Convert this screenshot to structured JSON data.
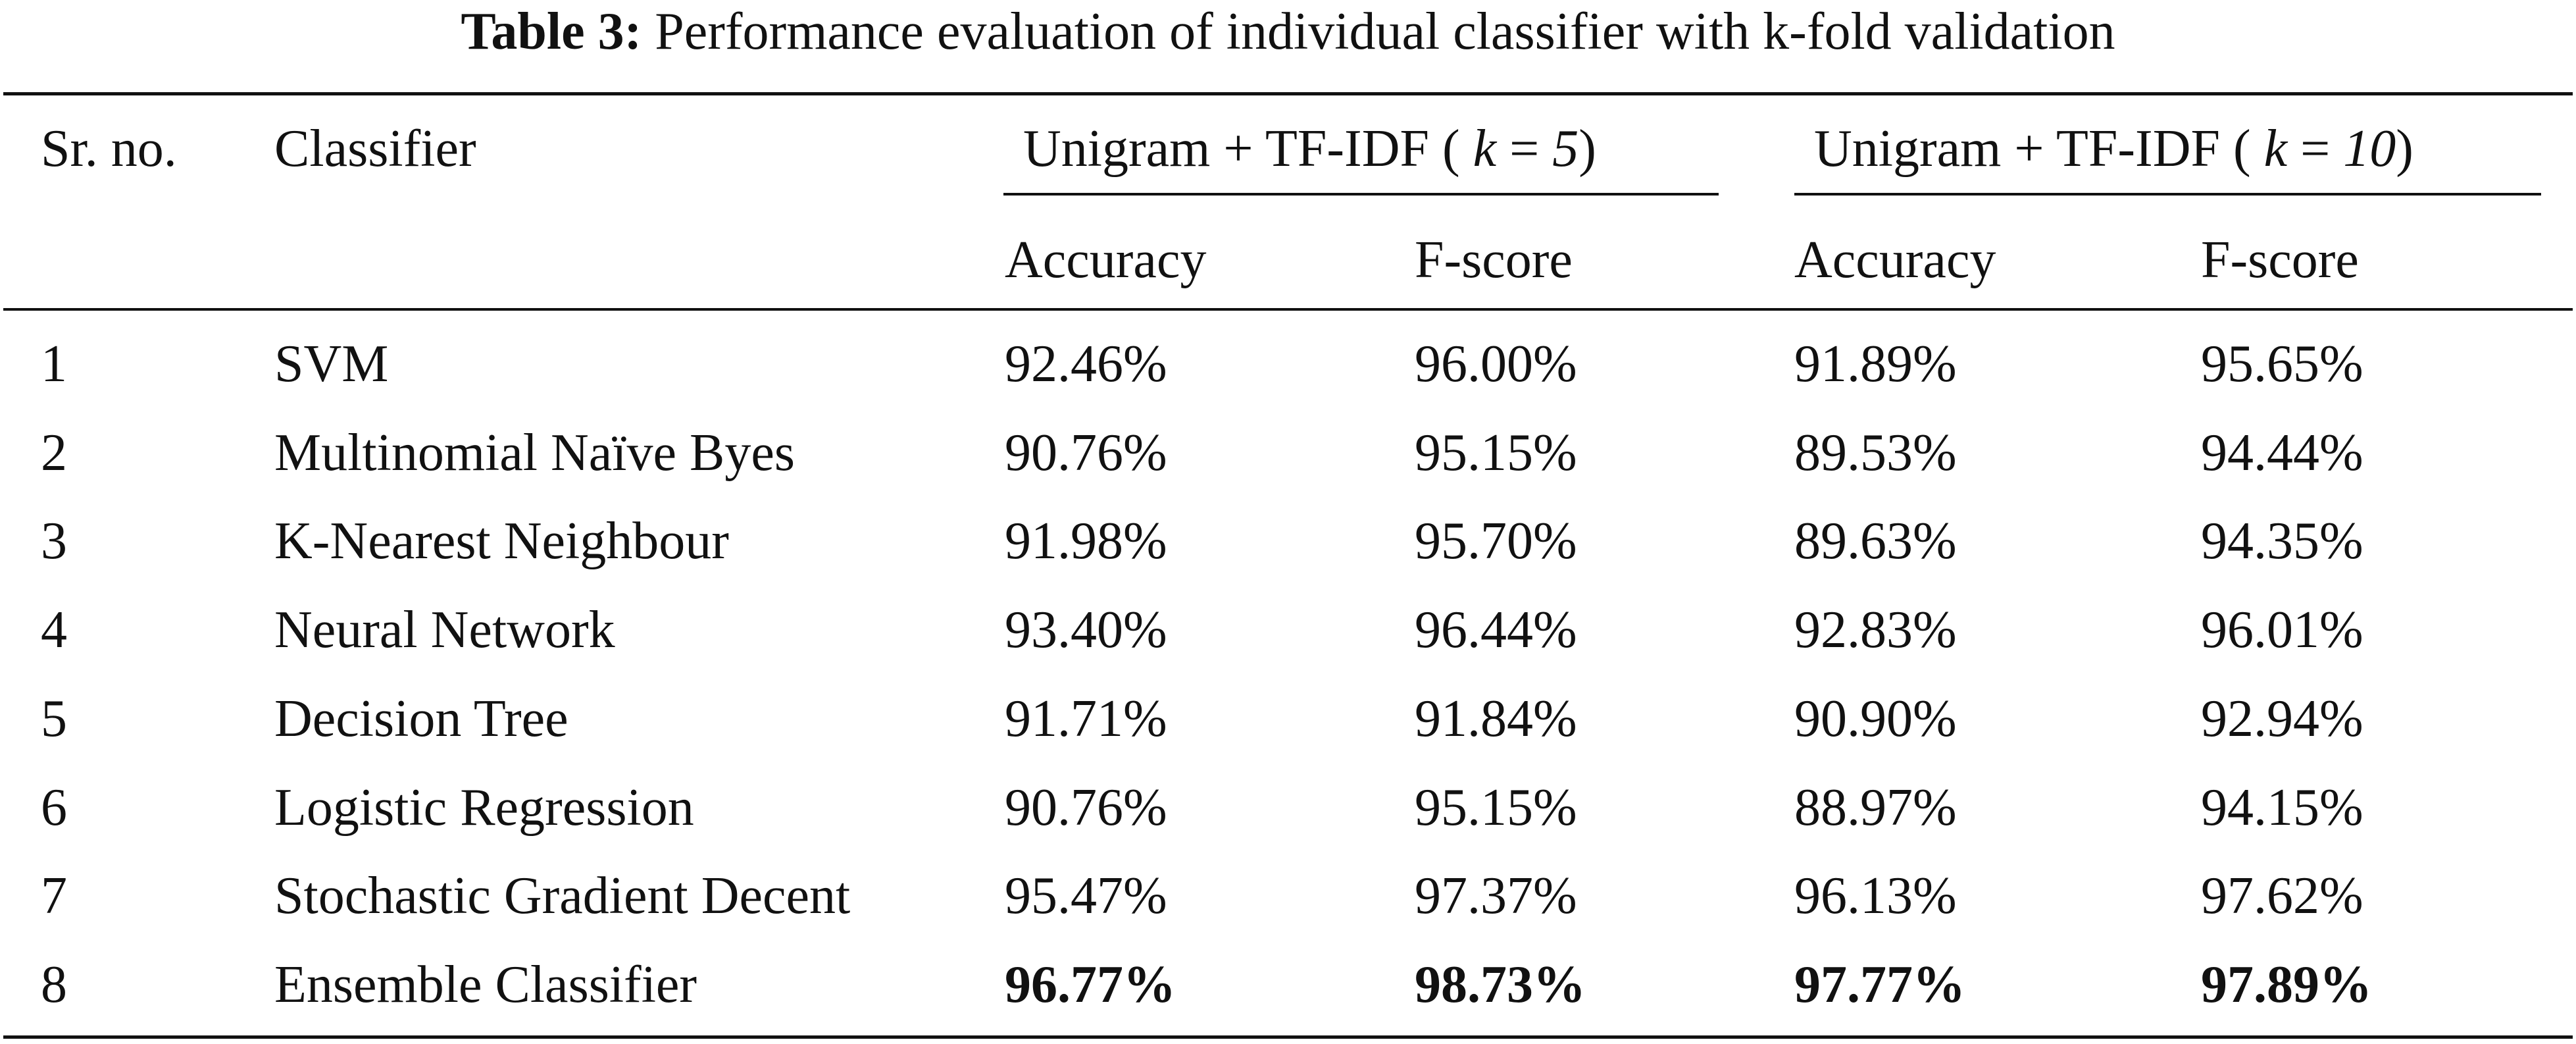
{
  "caption": {
    "label": "Table 3:",
    "text": "Performance evaluation of individual classifier with k-fold validation"
  },
  "header": {
    "sr_no": "Sr. no.",
    "classifier": "Classifier",
    "group1": {
      "prefix": "Unigram + TF-IDF ( ",
      "k": "k",
      "eq": " = ",
      "value": "5",
      "suffix": ")"
    },
    "group2": {
      "prefix": "Unigram + TF-IDF ( ",
      "k": "k",
      "eq": " = ",
      "value": "10",
      "suffix": ")"
    },
    "accuracy": "Accuracy",
    "fscore": "F-score"
  },
  "rows": [
    {
      "no": "1",
      "name": "SVM",
      "acc5": "92.46%",
      "f5": "96.00%",
      "acc10": "91.89%",
      "f10": "95.65%",
      "bold": false
    },
    {
      "no": "2",
      "name": "Multinomial Naïve Byes",
      "acc5": "90.76%",
      "f5": "95.15%",
      "acc10": "89.53%",
      "f10": "94.44%",
      "bold": false
    },
    {
      "no": "3",
      "name": "K-Nearest Neighbour",
      "acc5": "91.98%",
      "f5": "95.70%",
      "acc10": "89.63%",
      "f10": "94.35%",
      "bold": false
    },
    {
      "no": "4",
      "name": "Neural Network",
      "acc5": "93.40%",
      "f5": "96.44%",
      "acc10": "92.83%",
      "f10": "96.01%",
      "bold": false
    },
    {
      "no": "5",
      "name": "Decision Tree",
      "acc5": "91.71%",
      "f5": "91.84%",
      "acc10": "90.90%",
      "f10": "92.94%",
      "bold": false
    },
    {
      "no": "6",
      "name": "Logistic Regression",
      "acc5": "90.76%",
      "f5": "95.15%",
      "acc10": "88.97%",
      "f10": "94.15%",
      "bold": false
    },
    {
      "no": "7",
      "name": "Stochastic Gradient Decent",
      "acc5": "95.47%",
      "f5": "97.37%",
      "acc10": "96.13%",
      "f10": "97.62%",
      "bold": false
    },
    {
      "no": "8",
      "name": "Ensemble Classifier",
      "acc5": "96.77%",
      "f5": "98.73%",
      "acc10": "97.77%",
      "f10": "97.89%",
      "bold": true
    }
  ]
}
